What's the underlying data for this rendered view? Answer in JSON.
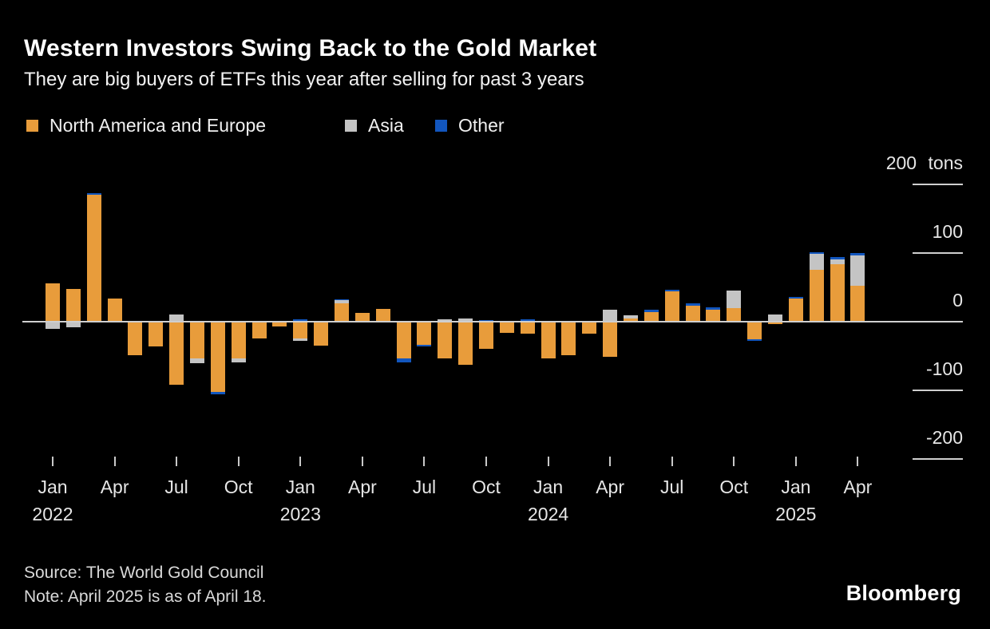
{
  "header": {
    "title": "Western Investors Swing Back to the Gold Market",
    "subtitle": "They are big buyers of ETFs this year after selling for past 3 years"
  },
  "legend": {
    "items": [
      {
        "label": "North America and Europe",
        "color": "#e89c3b"
      },
      {
        "label": "Asia",
        "color": "#c4c4c4"
      },
      {
        "label": "Other",
        "color": "#1256be"
      }
    ]
  },
  "chart_data": {
    "type": "bar",
    "stacked": true,
    "title": "Western Investors Swing Back to the Gold Market",
    "subtitle": "They are big buyers of ETFs this year after selling for past 3 years",
    "unit": "tons",
    "ylabel": "tons",
    "ylim": [
      -230,
      230
    ],
    "grid": "right-edge-ticks-only",
    "legend_position": "top-left",
    "x": [
      "Jan 2022",
      "Feb 2022",
      "Mar 2022",
      "Apr 2022",
      "May 2022",
      "Jun 2022",
      "Jul 2022",
      "Aug 2022",
      "Sep 2022",
      "Oct 2022",
      "Nov 2022",
      "Dec 2022",
      "Jan 2023",
      "Feb 2023",
      "Mar 2023",
      "Apr 2023",
      "May 2023",
      "Jun 2023",
      "Jul 2023",
      "Aug 2023",
      "Sep 2023",
      "Oct 2023",
      "Nov 2023",
      "Dec 2023",
      "Jan 2024",
      "Feb 2024",
      "Mar 2024",
      "Apr 2024",
      "May 2024",
      "Jun 2024",
      "Jul 2024",
      "Aug 2024",
      "Sep 2024",
      "Oct 2024",
      "Nov 2024",
      "Dec 2024",
      "Jan 2025",
      "Feb 2025",
      "Mar 2025",
      "Apr 2025"
    ],
    "series": [
      {
        "name": "North America and Europe",
        "color": "#e89c3b",
        "values": [
          56,
          48,
          185,
          34,
          -49,
          -36,
          -92,
          -53,
          -102,
          -54,
          -25,
          -7,
          -24,
          -35,
          27,
          13,
          19,
          -53,
          -34,
          -53,
          -63,
          -39,
          -16,
          -17,
          -54,
          -49,
          -18,
          -51,
          5,
          14,
          44,
          23,
          18,
          20,
          -26,
          -4,
          34,
          76,
          84,
          53
        ]
      },
      {
        "name": "Asia",
        "color": "#c4c4c4",
        "values": [
          -10,
          -8,
          0,
          0,
          0,
          0,
          11,
          -8,
          0,
          -5,
          0,
          0,
          -4,
          0,
          5,
          0,
          0,
          0,
          0,
          4,
          5,
          0,
          0,
          0,
          0,
          0,
          0,
          18,
          4,
          0,
          0,
          0,
          0,
          25,
          0,
          10,
          0,
          23,
          7,
          44
        ]
      },
      {
        "name": "Other",
        "color": "#1256be",
        "values": [
          0,
          0,
          3,
          0,
          0,
          0,
          0,
          0,
          -4,
          0,
          0,
          0,
          3,
          0,
          1,
          0,
          0,
          -6,
          -2,
          0,
          0,
          2,
          0,
          4,
          0,
          0,
          0,
          0,
          0,
          3,
          3,
          4,
          3,
          0,
          -2,
          0,
          2,
          3,
          3,
          3
        ]
      }
    ],
    "yticks": [
      {
        "value": 200,
        "label": "200 tons"
      },
      {
        "value": 100,
        "label": "100"
      },
      {
        "value": 0,
        "label": "0"
      },
      {
        "value": -100,
        "label": "-100"
      },
      {
        "value": -200,
        "label": "-200"
      }
    ],
    "xticks": [
      {
        "pos": 0,
        "label": "Jan",
        "year": "2022"
      },
      {
        "pos": 3,
        "label": "Apr"
      },
      {
        "pos": 6,
        "label": "Jul"
      },
      {
        "pos": 9,
        "label": "Oct"
      },
      {
        "pos": 12,
        "label": "Jan",
        "year": "2023"
      },
      {
        "pos": 15,
        "label": "Apr"
      },
      {
        "pos": 18,
        "label": "Jul"
      },
      {
        "pos": 21,
        "label": "Oct"
      },
      {
        "pos": 24,
        "label": "Jan",
        "year": "2024"
      },
      {
        "pos": 27,
        "label": "Apr"
      },
      {
        "pos": 30,
        "label": "Jul"
      },
      {
        "pos": 33,
        "label": "Oct"
      },
      {
        "pos": 36,
        "label": "Jan",
        "year": "2025"
      },
      {
        "pos": 39,
        "label": "Apr"
      }
    ]
  },
  "footer": {
    "source": "Source: The World Gold Council",
    "note": "Note: April 2025 is as of April 18.",
    "logo": "Bloomberg"
  }
}
